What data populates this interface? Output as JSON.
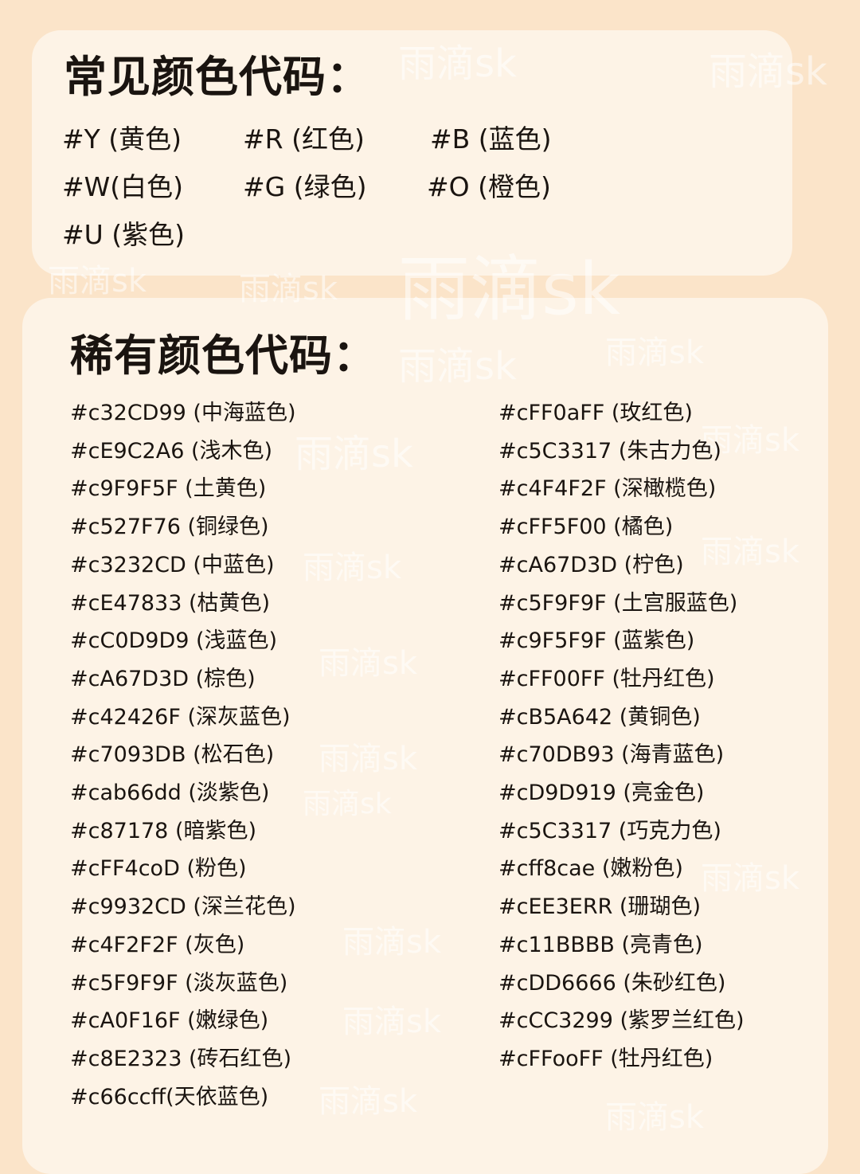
{
  "watermark": "雨滴sk",
  "colors": {
    "background": "#fbe4c9",
    "card": "#fdf3e6",
    "text": "#1a1410"
  },
  "common": {
    "title": "常见颜色代码：",
    "items": [
      "#Y (黄色)",
      "#R (红色)",
      "#B (蓝色)",
      "#W(白色)",
      "#G (绿色)",
      "#O (橙色)",
      "#U (紫色)"
    ]
  },
  "rare": {
    "title": "稀有颜色代码：",
    "left": [
      "#c32CD99 (中海蓝色)",
      "#cE9C2A6 (浅木色)",
      "#c9F9F5F (土黄色)",
      "#c527F76 (铜绿色)",
      "#c3232CD (中蓝色)",
      "#cE47833 (枯黄色)",
      "#cC0D9D9 (浅蓝色)",
      "#cA67D3D (棕色)",
      "#c42426F (深灰蓝色)",
      "#c7093DB (松石色)",
      "#cab66dd (淡紫色)",
      "#c87178 (暗紫色)",
      "#cFF4coD (粉色)",
      "#c9932CD (深兰花色)",
      "#c4F2F2F (灰色)",
      "#c5F9F9F (淡灰蓝色)",
      "#cA0F16F (嫩绿色)",
      "#c8E2323 (砖石红色)",
      "#c66ccff(天依蓝色)"
    ],
    "right": [
      "#cFF0aFF (玫红色)",
      "#c5C3317 (朱古力色)",
      "#c4F4F2F (深橄榄色)",
      "#cFF5F00 (橘色)",
      "#cA67D3D (柠色)",
      "#c5F9F9F (土宫服蓝色)",
      "#c9F5F9F (蓝紫色)",
      "#cFF00FF (牡丹红色)",
      "#cB5A642 (黄铜色)",
      "#c70DB93 (海青蓝色)",
      "#cD9D919 (亮金色)",
      "#c5C3317 (巧克力色)",
      "#cff8cae (嫩粉色)",
      "#cEE3ERR (珊瑚色)",
      "#c11BBBB (亮青色)",
      "#cDD6666 (朱砂红色)",
      "#cCC3299 (紫罗兰红色)",
      "#cFFooFF (牡丹红色)"
    ]
  }
}
